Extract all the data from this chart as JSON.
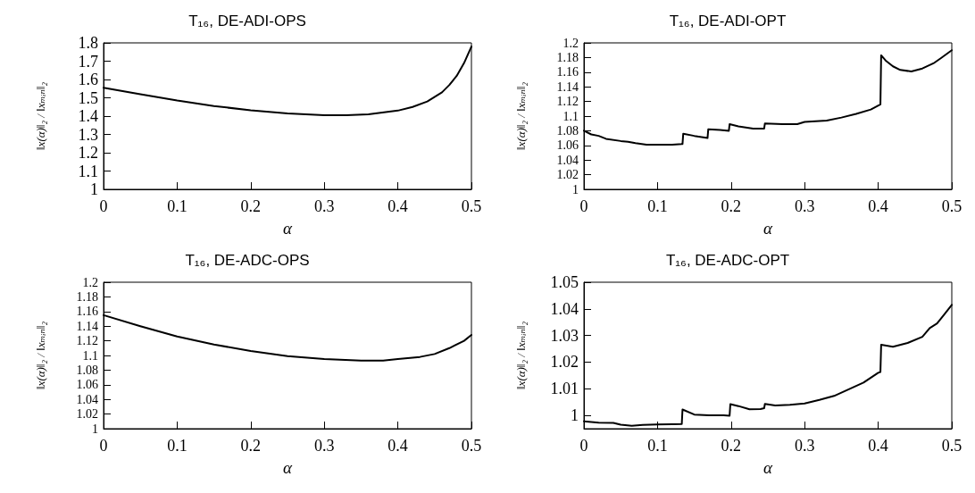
{
  "chart_data": [
    {
      "type": "line",
      "title": "T₁₆, DE-ADI-OPS",
      "xlabel": "α",
      "ylabel": "‖x(α)‖₂ / ‖xₘᵢₙ‖₂",
      "xlim": [
        0,
        0.5
      ],
      "xticks": [
        0,
        0.1,
        0.2,
        0.3,
        0.4,
        0.5
      ],
      "ylim": [
        1,
        1.8
      ],
      "yticks": [
        1,
        1.1,
        1.2,
        1.3,
        1.4,
        1.5,
        1.6,
        1.7,
        1.8
      ],
      "grid": false,
      "marker": "none",
      "line_style": "solid",
      "series": [
        {
          "color": "#000000",
          "x": [
            0,
            0.05,
            0.1,
            0.15,
            0.2,
            0.25,
            0.3,
            0.33,
            0.36,
            0.4,
            0.42,
            0.44,
            0.46,
            0.47,
            0.48,
            0.49,
            0.5
          ],
          "values": [
            1.555,
            1.52,
            1.485,
            1.455,
            1.432,
            1.415,
            1.405,
            1.405,
            1.41,
            1.43,
            1.45,
            1.48,
            1.53,
            1.57,
            1.62,
            1.69,
            1.78
          ]
        }
      ]
    },
    {
      "type": "line",
      "title": "T₁₆, DE-ADI-OPT",
      "xlabel": "α",
      "ylabel": "‖x(α)‖₂ / ‖xₘᵢₙ‖₂",
      "xlim": [
        0,
        0.5
      ],
      "xticks": [
        0,
        0.1,
        0.2,
        0.3,
        0.4,
        0.5
      ],
      "ylim": [
        1,
        1.2
      ],
      "yticks": [
        1,
        1.02,
        1.04,
        1.06,
        1.08,
        1.1,
        1.12,
        1.14,
        1.16,
        1.18,
        1.2
      ],
      "grid": false,
      "marker": "none",
      "line_style": "solid",
      "series": [
        {
          "color": "#000000",
          "x": [
            0,
            0.01,
            0.02,
            0.03,
            0.05,
            0.06,
            0.07,
            0.085,
            0.1,
            0.12,
            0.134,
            0.135,
            0.15,
            0.168,
            0.169,
            0.185,
            0.197,
            0.198,
            0.21,
            0.23,
            0.245,
            0.246,
            0.27,
            0.29,
            0.3,
            0.33,
            0.35,
            0.37,
            0.39,
            0.403,
            0.404,
            0.41,
            0.42,
            0.43,
            0.445,
            0.46,
            0.475,
            0.485,
            0.5
          ],
          "values": [
            1.08,
            1.075,
            1.073,
            1.069,
            1.066,
            1.065,
            1.063,
            1.061,
            1.061,
            1.061,
            1.062,
            1.076,
            1.073,
            1.07,
            1.082,
            1.081,
            1.08,
            1.089,
            1.086,
            1.083,
            1.083,
            1.09,
            1.089,
            1.089,
            1.092,
            1.094,
            1.098,
            1.103,
            1.109,
            1.116,
            1.183,
            1.176,
            1.168,
            1.163,
            1.161,
            1.165,
            1.172,
            1.179,
            1.19
          ]
        }
      ]
    },
    {
      "type": "line",
      "title": "T₁₆, DE-ADC-OPS",
      "xlabel": "α",
      "ylabel": "‖x(α)‖₂ / ‖xₘᵢₙ‖₂",
      "xlim": [
        0,
        0.5
      ],
      "xticks": [
        0,
        0.1,
        0.2,
        0.3,
        0.4,
        0.5
      ],
      "ylim": [
        1,
        1.2
      ],
      "yticks": [
        1,
        1.02,
        1.04,
        1.06,
        1.08,
        1.1,
        1.12,
        1.14,
        1.16,
        1.18,
        1.2
      ],
      "grid": false,
      "marker": "none",
      "line_style": "solid",
      "series": [
        {
          "color": "#000000",
          "x": [
            0,
            0.05,
            0.1,
            0.15,
            0.2,
            0.25,
            0.3,
            0.35,
            0.38,
            0.4,
            0.43,
            0.45,
            0.47,
            0.49,
            0.5
          ],
          "values": [
            1.155,
            1.14,
            1.126,
            1.115,
            1.106,
            1.099,
            1.095,
            1.093,
            1.093,
            1.095,
            1.098,
            1.102,
            1.11,
            1.12,
            1.128
          ]
        }
      ]
    },
    {
      "type": "line",
      "title": "T₁₆, DE-ADC-OPT",
      "xlabel": "α",
      "ylabel": "‖x(α)‖₂ / ‖xₘᵢₙ‖₂",
      "xlim": [
        0,
        0.5
      ],
      "xticks": [
        0,
        0.1,
        0.2,
        0.3,
        0.4,
        0.5
      ],
      "ylim": [
        0.995,
        1.05
      ],
      "yticks": [
        1,
        1.01,
        1.02,
        1.03,
        1.04,
        1.05
      ],
      "grid": false,
      "marker": "none",
      "line_style": "solid",
      "series": [
        {
          "color": "#000000",
          "x": [
            0,
            0.02,
            0.04,
            0.05,
            0.065,
            0.08,
            0.1,
            0.12,
            0.133,
            0.134,
            0.15,
            0.17,
            0.19,
            0.198,
            0.199,
            0.21,
            0.225,
            0.24,
            0.245,
            0.246,
            0.26,
            0.28,
            0.3,
            0.32,
            0.34,
            0.36,
            0.38,
            0.4,
            0.403,
            0.404,
            0.42,
            0.44,
            0.46,
            0.47,
            0.48,
            0.49,
            0.5
          ],
          "values": [
            0.9978,
            0.9973,
            0.9972,
            0.9965,
            0.9961,
            0.9964,
            0.9966,
            0.9967,
            0.9968,
            1.0022,
            1.0003,
            1.0,
            1.0,
            0.9999,
            1.0042,
            1.0035,
            1.0023,
            1.0024,
            1.0027,
            1.0043,
            1.0037,
            1.004,
            1.0045,
            1.0058,
            1.0073,
            1.0098,
            1.0123,
            1.016,
            1.0163,
            1.0265,
            1.0258,
            1.0272,
            1.0295,
            1.0328,
            1.0345,
            1.038,
            1.0415
          ]
        }
      ]
    }
  ]
}
